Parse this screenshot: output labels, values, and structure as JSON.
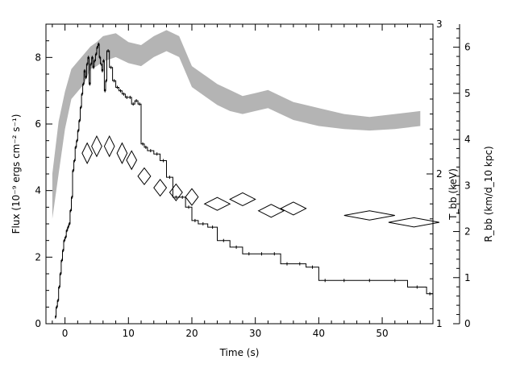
{
  "chart_data": {
    "type": "line",
    "title": "",
    "xlabel": "Time (s)",
    "ylabel_left": "Flux (10⁻⁹ ergs cm⁻² s⁻¹)",
    "ylabel_right_T": "T_bb (keV)",
    "ylabel_right_R": "R_bb (km/d_10 kpc)",
    "xlim": [
      -3,
      58
    ],
    "xticks": [
      0,
      10,
      20,
      30,
      40,
      50
    ],
    "y_flux_lim": [
      0,
      9
    ],
    "y_flux_ticks": [
      0,
      2,
      4,
      6,
      8
    ],
    "y_T_lim": [
      1,
      3
    ],
    "y_T_ticks": [
      1,
      2,
      3
    ],
    "y_R_lim": [
      0,
      6.5
    ],
    "y_R_ticks": [
      0,
      1,
      2,
      3,
      4,
      5,
      6
    ],
    "colors": {
      "flux": "#000000",
      "temperature_band": "#b4b4b4",
      "radius": "#000000"
    },
    "series": [
      {
        "mark": "histogram-step",
        "axis": "left",
        "x": [
          -1.6,
          -1.4,
          -1.2,
          -1.0,
          -0.8,
          -0.6,
          -0.4,
          -0.2,
          0.0,
          0.2,
          0.4,
          0.6,
          0.8,
          1.0,
          1.2,
          1.4,
          1.6,
          1.8,
          2.0,
          2.2,
          2.4,
          2.6,
          2.8,
          3.0,
          3.2,
          3.4,
          3.6,
          3.8,
          4.0,
          4.2,
          4.4,
          4.6,
          4.8,
          5.0,
          5.2,
          5.4,
          5.6,
          5.8,
          6.0,
          6.2,
          6.4,
          6.6,
          7.0,
          7.5,
          8.0,
          8.5,
          9.0,
          9.5,
          10.0,
          10.5,
          11.0,
          11.5,
          12.0,
          12.5,
          13.0,
          14.0,
          15.0,
          16.0,
          17.0,
          18.0,
          19.0,
          20.0,
          21.0,
          22.5,
          24.0,
          26.0,
          28.0,
          30.0,
          32.0,
          34.0,
          36.0,
          38.0,
          40.0,
          42.0,
          46.0,
          50.0,
          54.0,
          57.0
        ],
        "y": [
          0.2,
          0.5,
          0.7,
          1.1,
          1.5,
          1.9,
          2.2,
          2.5,
          2.6,
          2.8,
          2.9,
          3.0,
          3.4,
          3.8,
          4.6,
          4.9,
          5.3,
          5.5,
          5.8,
          6.1,
          6.5,
          6.9,
          7.2,
          7.6,
          7.4,
          7.8,
          8.0,
          7.2,
          7.8,
          8.0,
          7.7,
          7.9,
          8.1,
          8.3,
          8.4,
          8.0,
          7.8,
          7.6,
          7.9,
          7.0,
          7.3,
          8.2,
          7.7,
          7.3,
          7.1,
          7.0,
          6.9,
          6.8,
          6.8,
          6.6,
          6.7,
          6.6,
          5.4,
          5.3,
          5.2,
          5.1,
          4.9,
          4.4,
          3.8,
          3.8,
          3.5,
          3.1,
          3.0,
          2.9,
          2.5,
          2.3,
          2.1,
          2.1,
          2.1,
          1.8,
          1.8,
          1.7,
          1.3,
          1.3,
          1.3,
          1.3,
          1.1,
          0.9
        ]
      },
      {
        "mark": "uncertainty-band",
        "axis": "right_T",
        "x": [
          -2.0,
          -1.0,
          0.0,
          1.0,
          2.0,
          3.0,
          4.0,
          5.0,
          6.0,
          8.0,
          10.0,
          12.0,
          14.0,
          16.0,
          18.0,
          20.0,
          22.0,
          24.0,
          26.0,
          28.0,
          30.0,
          32.0,
          34.0,
          36.0,
          40.0,
          44.0,
          48.0,
          52.0,
          56.0
        ],
        "low": [
          1.7,
          2.0,
          2.3,
          2.5,
          2.55,
          2.6,
          2.7,
          2.72,
          2.75,
          2.78,
          2.74,
          2.72,
          2.78,
          2.82,
          2.78,
          2.58,
          2.52,
          2.46,
          2.42,
          2.4,
          2.42,
          2.44,
          2.4,
          2.36,
          2.32,
          2.3,
          2.29,
          2.3,
          2.32
        ],
        "high": [
          2.0,
          2.35,
          2.55,
          2.7,
          2.75,
          2.8,
          2.85,
          2.88,
          2.92,
          2.94,
          2.88,
          2.86,
          2.92,
          2.96,
          2.92,
          2.72,
          2.66,
          2.6,
          2.56,
          2.52,
          2.54,
          2.56,
          2.52,
          2.48,
          2.44,
          2.4,
          2.38,
          2.4,
          2.42
        ]
      },
      {
        "mark": "diamond",
        "axis": "right_R",
        "x": [
          3.5,
          5.0,
          7.0,
          9.0,
          10.5,
          12.5,
          15.0,
          17.5,
          20.0,
          24.0,
          28.0,
          32.5,
          36.0,
          48.0,
          55.0
        ],
        "y": [
          3.7,
          3.85,
          3.85,
          3.7,
          3.55,
          3.2,
          2.95,
          2.85,
          2.75,
          2.6,
          2.7,
          2.45,
          2.5,
          2.35,
          2.2
        ],
        "xerr": [
          0.8,
          0.8,
          0.8,
          0.8,
          0.8,
          1.0,
          1.0,
          1.0,
          1.0,
          2.0,
          2.0,
          2.0,
          2.0,
          4.0,
          4.0
        ],
        "yerr": [
          0.22,
          0.22,
          0.22,
          0.22,
          0.2,
          0.18,
          0.18,
          0.18,
          0.18,
          0.14,
          0.14,
          0.14,
          0.14,
          0.1,
          0.1
        ]
      }
    ]
  }
}
